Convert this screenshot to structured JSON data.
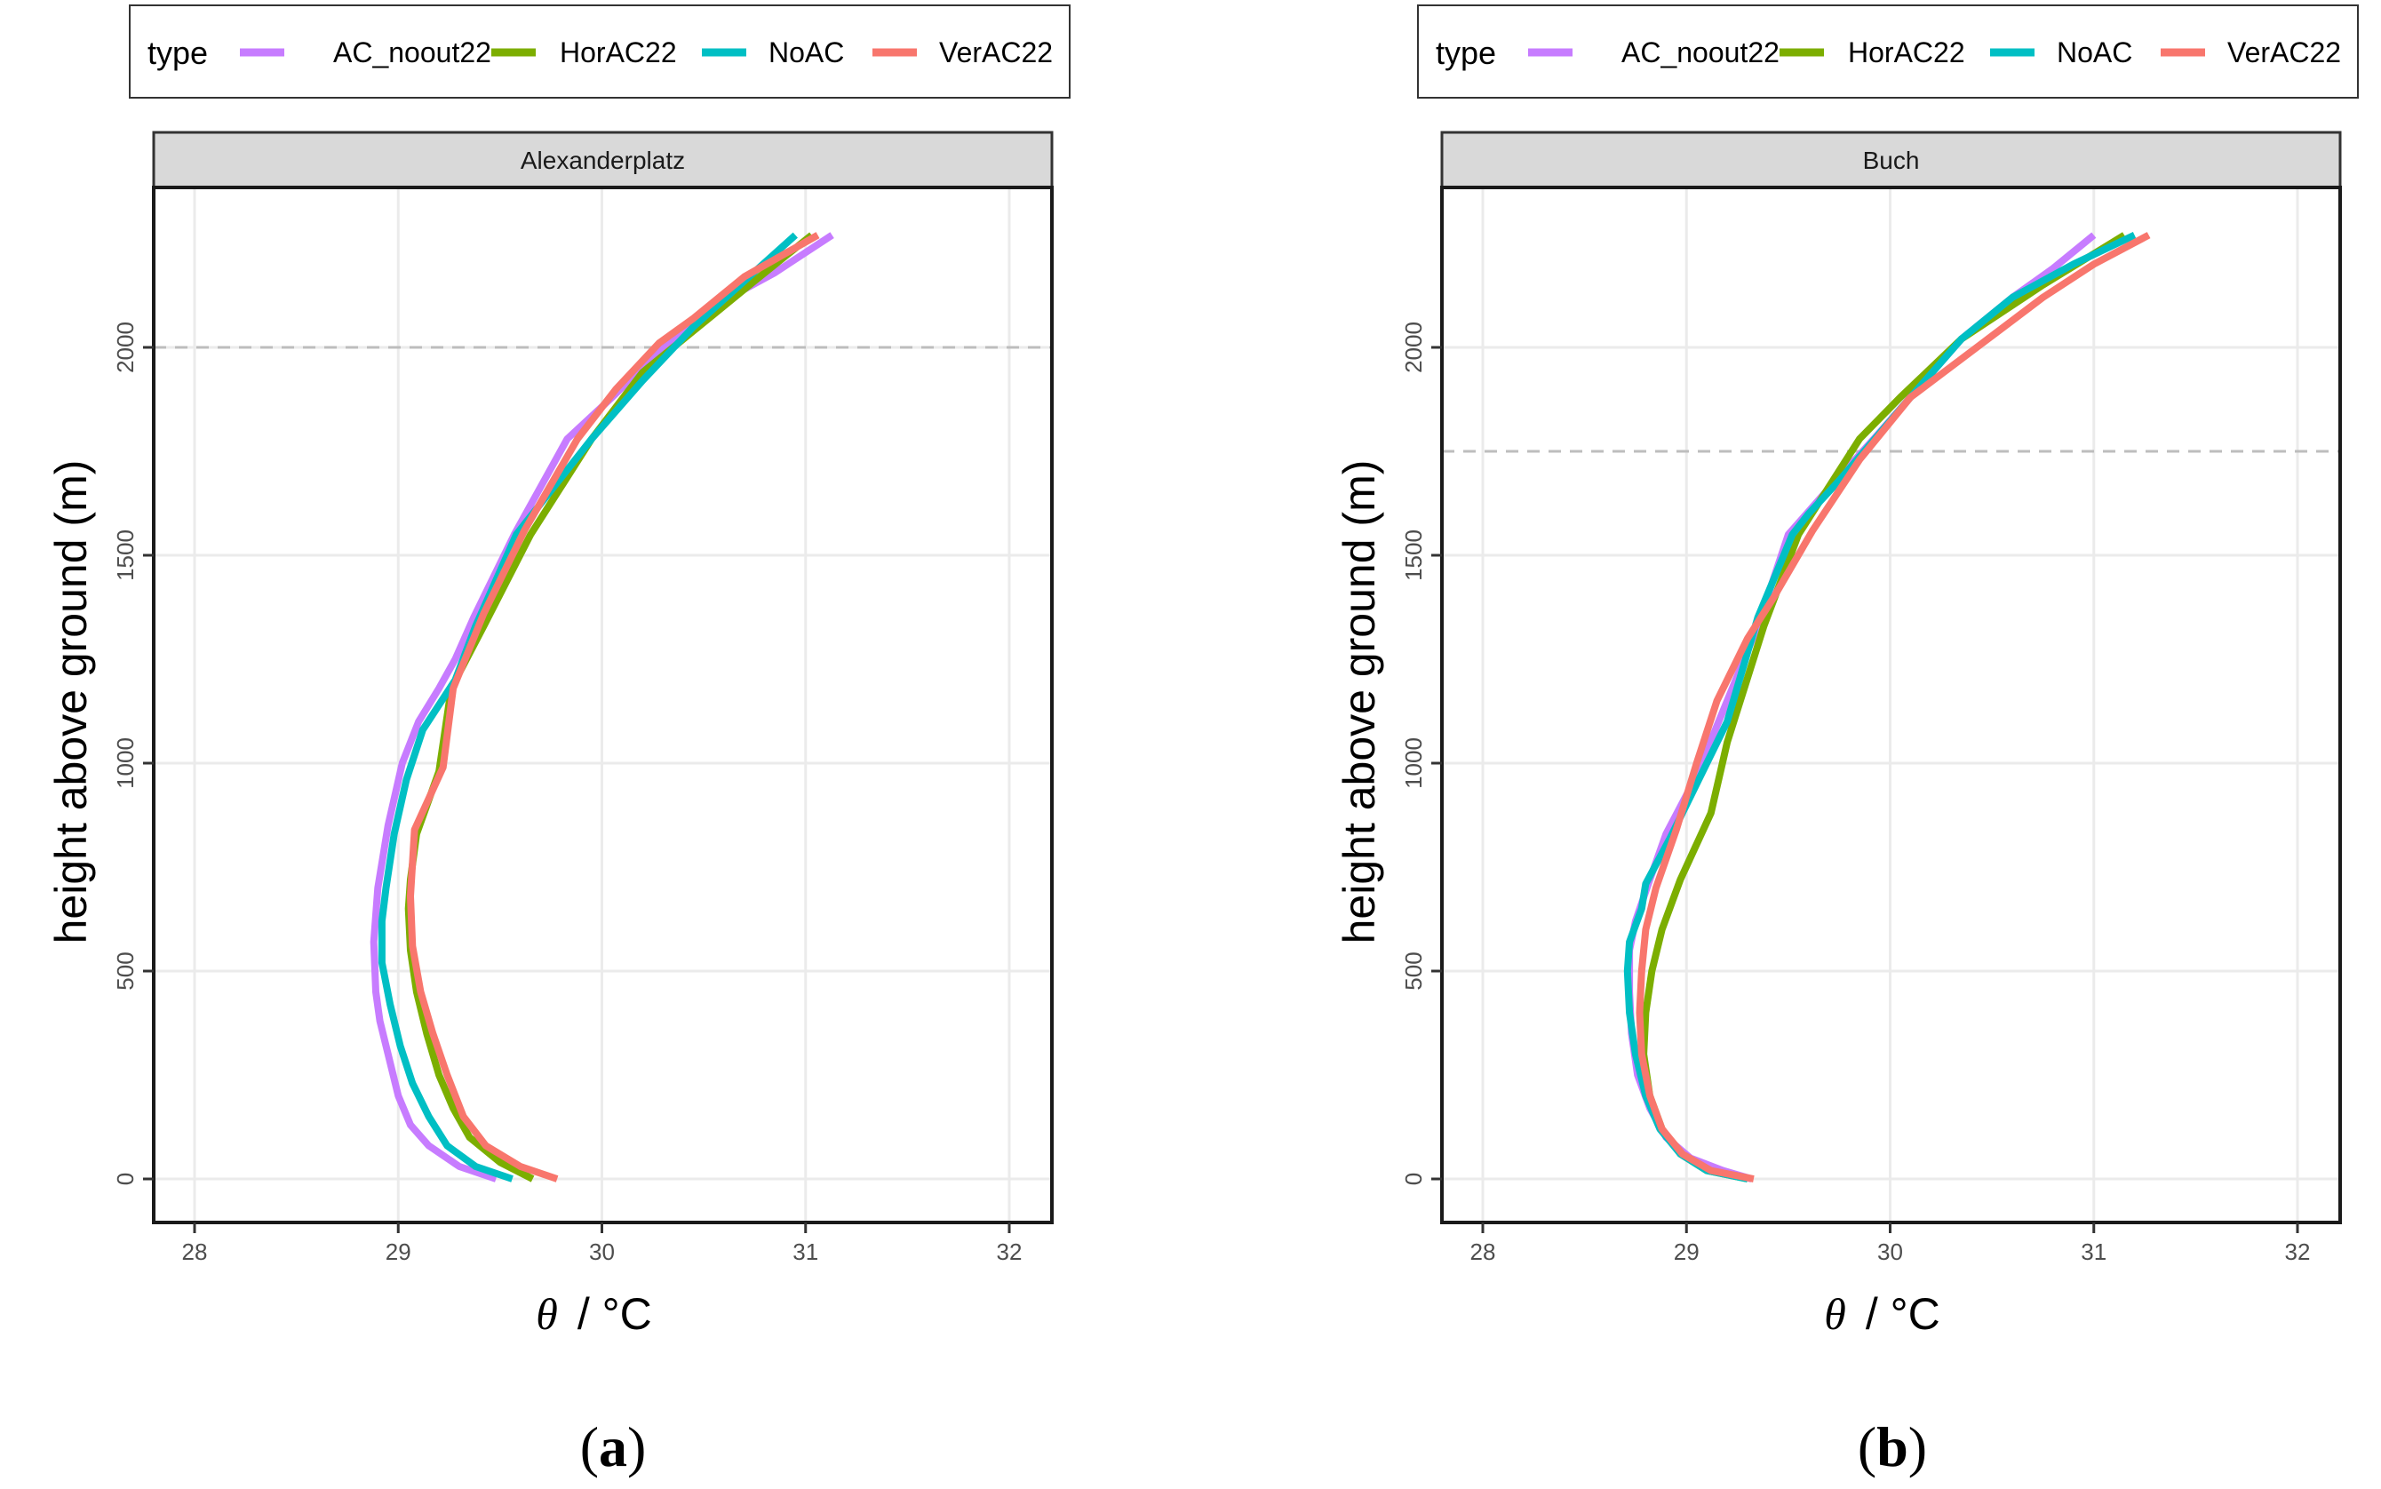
{
  "legend": {
    "title": "type",
    "entries": [
      {
        "label": "AC_noout22",
        "color": "#C77CFF"
      },
      {
        "label": "HorAC22",
        "color": "#7CAE00"
      },
      {
        "label": "NoAC",
        "color": "#00BFC4"
      },
      {
        "label": "VerAC22",
        "color": "#F8766D"
      }
    ]
  },
  "chart_data": [
    {
      "type": "line",
      "panel_caption": {
        "open": "(",
        "letter": "a",
        "close": ")"
      },
      "title": "Alexanderplatz",
      "xlabel_symbol": "θ",
      "xlabel_unit": "/ °C",
      "ylabel": "height above ground  (m)",
      "xlim": [
        27.8,
        32.2
      ],
      "ylim": [
        -110,
        2380
      ],
      "xticks": [
        "28",
        "29",
        "30",
        "31",
        "32"
      ],
      "yticks": [
        "0",
        "500",
        "1000",
        "1500",
        "2000"
      ],
      "reference_line_y": 2000,
      "grid": true,
      "series": [
        {
          "name": "AC_noout22",
          "color": "#C77CFF",
          "x": [
            29.48,
            29.3,
            29.15,
            29.06,
            29.0,
            28.95,
            28.91,
            28.89,
            28.88,
            28.9,
            28.95,
            29.02,
            29.1,
            29.2,
            29.28,
            29.37,
            29.57,
            29.83,
            30.05,
            30.28,
            30.55,
            30.85,
            31.13
          ],
          "y": [
            0,
            30,
            80,
            130,
            200,
            300,
            380,
            450,
            570,
            700,
            850,
            1000,
            1100,
            1180,
            1250,
            1350,
            1550,
            1780,
            1880,
            1990,
            2100,
            2180,
            2270
          ]
        },
        {
          "name": "HorAC22",
          "color": "#7CAE00",
          "x": [
            29.66,
            29.5,
            29.35,
            29.27,
            29.2,
            29.14,
            29.09,
            29.06,
            29.05,
            29.06,
            29.09,
            29.2,
            29.26,
            29.42,
            29.65,
            29.95,
            30.2,
            30.55,
            30.75,
            31.03
          ],
          "y": [
            0,
            40,
            100,
            170,
            250,
            350,
            450,
            550,
            650,
            720,
            830,
            980,
            1180,
            1330,
            1550,
            1780,
            1940,
            2080,
            2160,
            2270
          ]
        },
        {
          "name": "NoAC",
          "color": "#00BFC4",
          "x": [
            29.56,
            29.38,
            29.24,
            29.15,
            29.07,
            29.01,
            28.96,
            28.92,
            28.92,
            28.94,
            28.98,
            29.04,
            29.12,
            29.28,
            29.38,
            29.58,
            29.95,
            30.2,
            30.45,
            30.7,
            30.95
          ],
          "y": [
            0,
            30,
            80,
            150,
            230,
            320,
            420,
            520,
            620,
            700,
            830,
            960,
            1080,
            1200,
            1330,
            1550,
            1780,
            1920,
            2050,
            2160,
            2270
          ]
        },
        {
          "name": "VerAC22",
          "color": "#F8766D",
          "x": [
            29.78,
            29.6,
            29.43,
            29.32,
            29.24,
            29.17,
            29.11,
            29.07,
            29.06,
            29.08,
            29.22,
            29.27,
            29.42,
            29.62,
            29.88,
            30.07,
            30.28,
            30.45,
            30.7,
            31.06
          ],
          "y": [
            0,
            30,
            80,
            150,
            250,
            350,
            450,
            560,
            680,
            840,
            990,
            1180,
            1360,
            1560,
            1780,
            1900,
            2010,
            2070,
            2170,
            2270
          ]
        }
      ]
    },
    {
      "type": "line",
      "panel_caption": {
        "open": "(",
        "letter": "b",
        "close": ")"
      },
      "title": "Buch",
      "xlabel_symbol": "θ",
      "xlabel_unit": "/ °C",
      "ylabel": "height above ground  (m)",
      "xlim": [
        27.8,
        32.2
      ],
      "ylim": [
        -110,
        2380
      ],
      "xticks": [
        "28",
        "29",
        "30",
        "31",
        "32"
      ],
      "yticks": [
        "0",
        "500",
        "1000",
        "1500",
        "2000"
      ],
      "reference_line_y": 1750,
      "grid": true,
      "series": [
        {
          "name": "AC_noout22",
          "color": "#C77CFF",
          "x": [
            29.32,
            29.18,
            29.02,
            28.9,
            28.82,
            28.76,
            28.73,
            28.72,
            28.72,
            28.75,
            28.82,
            28.9,
            29.05,
            29.2,
            29.35,
            29.5,
            29.68,
            29.92,
            30.1,
            30.35,
            30.6,
            30.8,
            31.0
          ],
          "y": [
            0,
            20,
            50,
            100,
            170,
            250,
            350,
            450,
            550,
            620,
            720,
            830,
            970,
            1150,
            1330,
            1550,
            1650,
            1780,
            1880,
            2020,
            2120,
            2190,
            2270
          ]
        },
        {
          "name": "HorAC22",
          "color": "#7CAE00",
          "x": [
            29.3,
            29.1,
            28.97,
            28.88,
            28.82,
            28.79,
            28.8,
            28.83,
            28.88,
            28.97,
            29.12,
            29.2,
            29.38,
            29.55,
            29.85,
            30.05,
            30.35,
            30.75,
            31.15
          ],
          "y": [
            0,
            20,
            60,
            120,
            200,
            300,
            400,
            500,
            600,
            720,
            880,
            1050,
            1330,
            1550,
            1780,
            1880,
            2020,
            2150,
            2270
          ]
        },
        {
          "name": "NoAC",
          "color": "#00BFC4",
          "x": [
            29.3,
            29.1,
            28.97,
            28.87,
            28.8,
            28.75,
            28.72,
            28.71,
            28.72,
            28.78,
            28.8,
            28.92,
            29.05,
            29.2,
            29.35,
            29.52,
            29.6,
            29.75,
            30.1,
            30.35,
            30.6,
            30.9,
            31.2
          ],
          "y": [
            0,
            20,
            60,
            120,
            200,
            300,
            400,
            500,
            570,
            650,
            710,
            820,
            950,
            1100,
            1350,
            1550,
            1600,
            1680,
            1880,
            2020,
            2120,
            2200,
            2270
          ]
        },
        {
          "name": "VerAC22",
          "color": "#F8766D",
          "x": [
            29.33,
            29.12,
            28.98,
            28.88,
            28.82,
            28.78,
            28.77,
            28.78,
            28.8,
            28.85,
            28.95,
            29.05,
            29.15,
            29.3,
            29.43,
            29.62,
            29.85,
            30.1,
            30.48,
            30.75,
            31.0,
            31.27
          ],
          "y": [
            0,
            20,
            60,
            120,
            200,
            300,
            400,
            500,
            600,
            700,
            840,
            1000,
            1150,
            1300,
            1400,
            1560,
            1730,
            1880,
            2020,
            2120,
            2200,
            2270
          ]
        }
      ]
    }
  ]
}
